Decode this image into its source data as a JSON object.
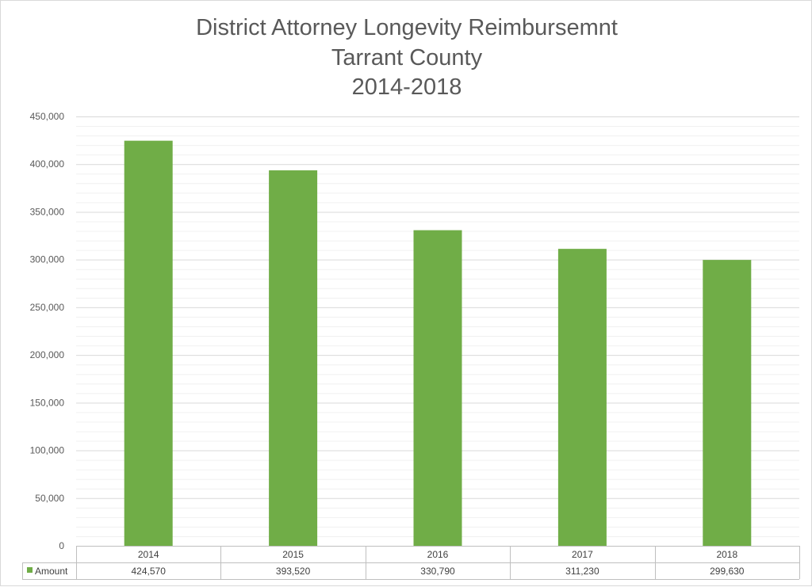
{
  "chart_data": {
    "type": "bar",
    "title_lines": [
      "District Attorney Longevity Reimbursemnt",
      "Tarrant County",
      "2014-2018"
    ],
    "categories": [
      "2014",
      "2015",
      "2016",
      "2017",
      "2018"
    ],
    "series": [
      {
        "name": "Amount",
        "values": [
          424570,
          393520,
          330790,
          311230,
          299630
        ],
        "value_labels": [
          "424,570",
          "393,520",
          "330,790",
          "311,230",
          "299,630"
        ],
        "color": "#70ad47"
      }
    ],
    "y_ticks": [
      "0",
      "50,000",
      "100,000",
      "150,000",
      "200,000",
      "250,000",
      "300,000",
      "350,000",
      "400,000",
      "450,000"
    ],
    "ylim": [
      0,
      450000
    ],
    "major_gridlines": true,
    "minor_gridlines": true,
    "data_table": true,
    "legend": "in data table"
  }
}
